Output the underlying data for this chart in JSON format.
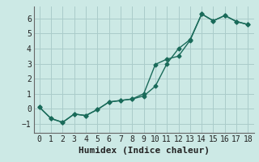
{
  "title": "",
  "xlabel": "Humidex (Indice chaleur)",
  "ylabel": "",
  "bg_color": "#cce9e5",
  "grid_color": "#aaccca",
  "line_color": "#1a6b5a",
  "xlim": [
    -0.5,
    18.5
  ],
  "ylim": [
    -1.6,
    6.8
  ],
  "xticks": [
    0,
    1,
    2,
    3,
    4,
    5,
    6,
    7,
    8,
    9,
    10,
    11,
    12,
    13,
    14,
    15,
    16,
    17,
    18
  ],
  "yticks": [
    -1,
    0,
    1,
    2,
    3,
    4,
    5,
    6
  ],
  "line1_x": [
    0,
    1,
    2,
    3,
    4,
    5,
    6,
    7,
    8,
    9,
    10,
    11,
    12,
    13,
    14,
    15,
    16,
    17,
    18
  ],
  "line1_y": [
    0.1,
    -0.65,
    -0.9,
    -0.35,
    -0.45,
    -0.05,
    0.45,
    0.55,
    0.65,
    0.85,
    1.5,
    3.0,
    4.0,
    4.6,
    6.3,
    5.85,
    6.2,
    5.8,
    5.6
  ],
  "line2_x": [
    0,
    1,
    2,
    3,
    4,
    5,
    6,
    7,
    8,
    9,
    10,
    11,
    12,
    13,
    14,
    15,
    16,
    17,
    18
  ],
  "line2_y": [
    0.1,
    -0.65,
    -0.9,
    -0.35,
    -0.45,
    -0.05,
    0.45,
    0.55,
    0.65,
    1.0,
    2.95,
    3.3,
    3.5,
    4.55,
    6.3,
    5.85,
    6.2,
    5.8,
    5.6
  ],
  "marker": "D",
  "markersize": 2.5,
  "linewidth": 1.0,
  "xlabel_fontsize": 8,
  "tick_fontsize": 7
}
